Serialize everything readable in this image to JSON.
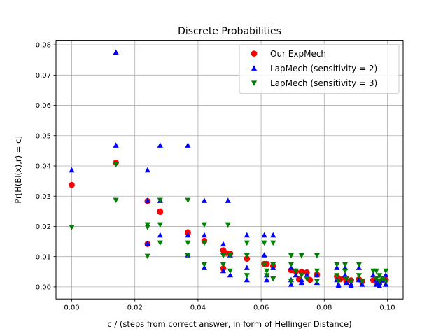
{
  "chart_data": {
    "type": "scatter",
    "title": "Discrete Probabilities",
    "xlabel": "c / (steps from correct answer, in form of Hellinger Distance)",
    "ylabel": "Pr[H(Bl(x),r) = c]",
    "xlim": [
      -0.005,
      0.105
    ],
    "ylim": [
      -0.004,
      0.0815
    ],
    "x_ticks": [
      {
        "value": 0.0,
        "label": "0.00"
      },
      {
        "value": 0.02,
        "label": "0.02"
      },
      {
        "value": 0.04,
        "label": "0.04"
      },
      {
        "value": 0.06,
        "label": "0.06"
      },
      {
        "value": 0.08,
        "label": "0.08"
      },
      {
        "value": 0.1,
        "label": "0.10"
      }
    ],
    "y_ticks": [
      {
        "value": 0.0,
        "label": "0.00"
      },
      {
        "value": 0.01,
        "label": "0.01"
      },
      {
        "value": 0.02,
        "label": "0.02"
      },
      {
        "value": 0.03,
        "label": "0.03"
      },
      {
        "value": 0.04,
        "label": "0.04"
      },
      {
        "value": 0.05,
        "label": "0.05"
      },
      {
        "value": 0.06,
        "label": "0.06"
      },
      {
        "value": 0.07,
        "label": "0.07"
      },
      {
        "value": 0.08,
        "label": "0.08"
      }
    ],
    "grid": true,
    "legend_position": "top-right",
    "series": [
      {
        "name": "Our ExpMech",
        "color": "#ff0000",
        "marker": "circle",
        "points": [
          [
            0.0,
            0.0337
          ],
          [
            0.014,
            0.0411
          ],
          [
            0.024,
            0.0284
          ],
          [
            0.024,
            0.0142
          ],
          [
            0.028,
            0.025
          ],
          [
            0.028,
            0.0248
          ],
          [
            0.0368,
            0.0181
          ],
          [
            0.0368,
            0.0178
          ],
          [
            0.042,
            0.0152
          ],
          [
            0.048,
            0.0121
          ],
          [
            0.049,
            0.0112
          ],
          [
            0.0502,
            0.011
          ],
          [
            0.048,
            0.0061
          ],
          [
            0.0555,
            0.0093
          ],
          [
            0.061,
            0.0076
          ],
          [
            0.0618,
            0.0076
          ],
          [
            0.0638,
            0.0069
          ],
          [
            0.0695,
            0.0055
          ],
          [
            0.071,
            0.0051
          ],
          [
            0.0728,
            0.005
          ],
          [
            0.0745,
            0.0048
          ],
          [
            0.072,
            0.0025
          ],
          [
            0.0755,
            0.0023
          ],
          [
            0.0777,
            0.0041
          ],
          [
            0.084,
            0.0035
          ],
          [
            0.085,
            0.0025
          ],
          [
            0.0866,
            0.003
          ],
          [
            0.087,
            0.0018
          ],
          [
            0.0885,
            0.0022
          ],
          [
            0.091,
            0.0025
          ],
          [
            0.092,
            0.0018
          ],
          [
            0.0955,
            0.0022
          ],
          [
            0.0965,
            0.0018
          ],
          [
            0.0975,
            0.0015
          ],
          [
            0.0985,
            0.0023
          ],
          [
            0.0995,
            0.0023
          ]
        ]
      },
      {
        "name": "LapMech (sensitivity = 2)",
        "color": "#0000ff",
        "marker": "triangle-up",
        "points": [
          [
            0.0,
            0.0386
          ],
          [
            0.014,
            0.0775
          ],
          [
            0.014,
            0.0468
          ],
          [
            0.024,
            0.0386
          ],
          [
            0.024,
            0.0285
          ],
          [
            0.024,
            0.0143
          ],
          [
            0.028,
            0.0468
          ],
          [
            0.028,
            0.0285
          ],
          [
            0.028,
            0.0171
          ],
          [
            0.0368,
            0.0468
          ],
          [
            0.0368,
            0.0171
          ],
          [
            0.0368,
            0.0105
          ],
          [
            0.042,
            0.0285
          ],
          [
            0.042,
            0.0171
          ],
          [
            0.042,
            0.0063
          ],
          [
            0.048,
            0.0141
          ],
          [
            0.048,
            0.0053
          ],
          [
            0.0495,
            0.0285
          ],
          [
            0.0502,
            0.0105
          ],
          [
            0.0502,
            0.0039
          ],
          [
            0.0555,
            0.0171
          ],
          [
            0.0555,
            0.0063
          ],
          [
            0.0555,
            0.0023
          ],
          [
            0.061,
            0.0171
          ],
          [
            0.061,
            0.0105
          ],
          [
            0.0618,
            0.0039
          ],
          [
            0.0618,
            0.0023
          ],
          [
            0.0638,
            0.0171
          ],
          [
            0.0638,
            0.0063
          ],
          [
            0.0695,
            0.0063
          ],
          [
            0.0695,
            0.0023
          ],
          [
            0.0695,
            0.0008
          ],
          [
            0.071,
            0.0039
          ],
          [
            0.0728,
            0.0023
          ],
          [
            0.0728,
            0.0014
          ],
          [
            0.0745,
            0.0039
          ],
          [
            0.0777,
            0.0039
          ],
          [
            0.0777,
            0.0014
          ],
          [
            0.084,
            0.0063
          ],
          [
            0.084,
            0.0023
          ],
          [
            0.0845,
            0.0008
          ],
          [
            0.0845,
            0.0003
          ],
          [
            0.0866,
            0.0063
          ],
          [
            0.0866,
            0.0039
          ],
          [
            0.087,
            0.0014
          ],
          [
            0.0885,
            0.0008
          ],
          [
            0.0885,
            0.0003
          ],
          [
            0.091,
            0.0063
          ],
          [
            0.091,
            0.0023
          ],
          [
            0.092,
            0.0008
          ],
          [
            0.0955,
            0.0039
          ],
          [
            0.0965,
            0.0023
          ],
          [
            0.0965,
            0.0008
          ],
          [
            0.0975,
            0.0014
          ],
          [
            0.0975,
            0.0003
          ],
          [
            0.0985,
            0.0023
          ],
          [
            0.0995,
            0.0039
          ],
          [
            0.0995,
            0.0008
          ]
        ]
      },
      {
        "name": "LapMech (sensitivity = 3)",
        "color": "#008000",
        "marker": "triangle-down",
        "points": [
          [
            0.0,
            0.0198
          ],
          [
            0.014,
            0.0405
          ],
          [
            0.014,
            0.0287
          ],
          [
            0.024,
            0.0206
          ],
          [
            0.024,
            0.0198
          ],
          [
            0.024,
            0.0102
          ],
          [
            0.028,
            0.0287
          ],
          [
            0.028,
            0.0206
          ],
          [
            0.028,
            0.0146
          ],
          [
            0.0368,
            0.0287
          ],
          [
            0.0368,
            0.0146
          ],
          [
            0.0368,
            0.0104
          ],
          [
            0.042,
            0.0206
          ],
          [
            0.042,
            0.0146
          ],
          [
            0.042,
            0.0074
          ],
          [
            0.048,
            0.0104
          ],
          [
            0.048,
            0.0074
          ],
          [
            0.0495,
            0.0206
          ],
          [
            0.0502,
            0.0104
          ],
          [
            0.0502,
            0.0053
          ],
          [
            0.0555,
            0.0146
          ],
          [
            0.0555,
            0.0104
          ],
          [
            0.0555,
            0.0038
          ],
          [
            0.061,
            0.0146
          ],
          [
            0.061,
            0.0074
          ],
          [
            0.0618,
            0.0053
          ],
          [
            0.0618,
            0.0038
          ],
          [
            0.0638,
            0.0146
          ],
          [
            0.0638,
            0.0074
          ],
          [
            0.0638,
            0.0027
          ],
          [
            0.0695,
            0.0104
          ],
          [
            0.0695,
            0.0074
          ],
          [
            0.0695,
            0.0019
          ],
          [
            0.071,
            0.0053
          ],
          [
            0.0728,
            0.0104
          ],
          [
            0.0728,
            0.0038
          ],
          [
            0.0745,
            0.0027
          ],
          [
            0.0777,
            0.0104
          ],
          [
            0.0777,
            0.0053
          ],
          [
            0.0777,
            0.0019
          ],
          [
            0.084,
            0.0074
          ],
          [
            0.084,
            0.0038
          ],
          [
            0.0845,
            0.0019
          ],
          [
            0.0866,
            0.0074
          ],
          [
            0.0866,
            0.0053
          ],
          [
            0.087,
            0.0027
          ],
          [
            0.0885,
            0.0019
          ],
          [
            0.091,
            0.0074
          ],
          [
            0.091,
            0.0038
          ],
          [
            0.092,
            0.0019
          ],
          [
            0.0955,
            0.0053
          ],
          [
            0.0965,
            0.0053
          ],
          [
            0.0965,
            0.0027
          ],
          [
            0.0975,
            0.0038
          ],
          [
            0.0975,
            0.0019
          ],
          [
            0.0985,
            0.0027
          ],
          [
            0.0995,
            0.0053
          ],
          [
            0.0995,
            0.0019
          ]
        ]
      }
    ]
  }
}
